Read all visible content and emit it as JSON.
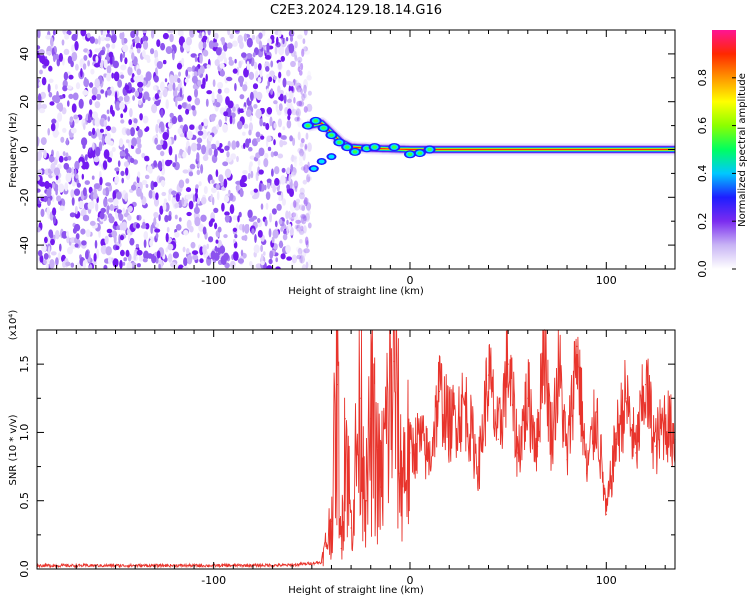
{
  "title": "C2E3.2024.129.18.14.G16",
  "chart_data": [
    {
      "type": "heatmap",
      "xlabel": "Height of straight line (km)",
      "ylabel": "Frequency (Hz)",
      "xlim": [
        -190,
        135
      ],
      "ylim": [
        -50,
        50
      ],
      "xticks": [
        -100,
        0,
        100
      ],
      "yticks": [
        -40,
        -20,
        0,
        20,
        40
      ],
      "noise_region_x": [
        -190,
        -55
      ],
      "trace": [
        {
          "x": -52,
          "y": 10
        },
        {
          "x": -45,
          "y": 11
        },
        {
          "x": -40,
          "y": 7
        },
        {
          "x": -35,
          "y": 3
        },
        {
          "x": -30,
          "y": 1
        },
        {
          "x": -20,
          "y": 0.5
        },
        {
          "x": 0,
          "y": 0
        },
        {
          "x": 135,
          "y": 0
        }
      ],
      "colorbar": {
        "label": "Normalized spectral amplitude",
        "range": [
          0,
          1
        ],
        "ticks": [
          0.0,
          0.2,
          0.4,
          0.6,
          0.8
        ],
        "colors": [
          "#ffffff",
          "#c8b4f5",
          "#7b2cf0",
          "#1e1eff",
          "#00c8ff",
          "#00ff60",
          "#8cff00",
          "#ffff00",
          "#ff9600",
          "#ff2800",
          "#ff1493"
        ]
      }
    },
    {
      "type": "line",
      "xlabel": "Height of straight line (km)",
      "ylabel": "SNR (10 * v/v)",
      "y_multiplier": "(x10⁴)",
      "xlim": [
        -190,
        135
      ],
      "ylim": [
        0,
        17500
      ],
      "xticks": [
        -100,
        0,
        100
      ],
      "yticks": [
        0,
        5000,
        10000,
        15000
      ],
      "ytick_labels": [
        "0.0",
        "0.5",
        "1.0",
        "1.5"
      ],
      "series_color": "#e8342c",
      "series": [
        {
          "values": [
            [
              -190,
              250
            ],
            [
              -150,
              250
            ],
            [
              -100,
              250
            ],
            [
              -60,
              280
            ],
            [
              -45,
              500
            ],
            [
              -40,
              3500
            ],
            [
              -37,
              13500
            ],
            [
              -35,
              1500
            ],
            [
              -33,
              11000
            ],
            [
              -30,
              3000
            ],
            [
              -25,
              12500
            ],
            [
              -22,
              5000
            ],
            [
              -20,
              11000
            ],
            [
              -15,
              6000
            ],
            [
              -8,
              15200
            ],
            [
              -5,
              7000
            ],
            [
              0,
              8500
            ],
            [
              5,
              9500
            ],
            [
              10,
              8000
            ],
            [
              15,
              13000
            ],
            [
              20,
              10500
            ],
            [
              28,
              12000
            ],
            [
              35,
              7500
            ],
            [
              40,
              14200
            ],
            [
              45,
              9500
            ],
            [
              50,
              15000
            ],
            [
              55,
              8500
            ],
            [
              60,
              12500
            ],
            [
              65,
              9000
            ],
            [
              68,
              17300
            ],
            [
              72,
              9500
            ],
            [
              76,
              14700
            ],
            [
              80,
              8000
            ],
            [
              85,
              16300
            ],
            [
              90,
              7000
            ],
            [
              95,
              11500
            ],
            [
              100,
              4000
            ],
            [
              105,
              9500
            ],
            [
              110,
              12500
            ],
            [
              115,
              8500
            ],
            [
              120,
              13500
            ],
            [
              125,
              9000
            ],
            [
              130,
              11000
            ],
            [
              135,
              9500
            ]
          ]
        }
      ]
    }
  ]
}
